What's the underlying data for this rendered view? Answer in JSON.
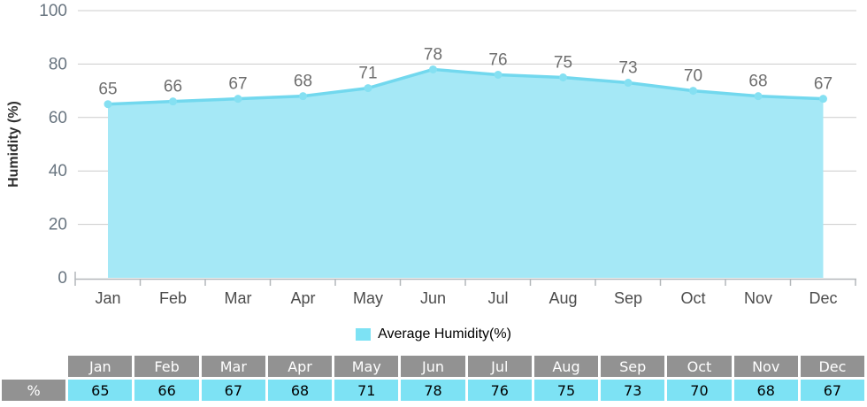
{
  "chart_data": {
    "type": "area",
    "categories": [
      "Jan",
      "Feb",
      "Mar",
      "Apr",
      "May",
      "Jun",
      "Jul",
      "Aug",
      "Sep",
      "Oct",
      "Nov",
      "Dec"
    ],
    "values": [
      65,
      66,
      67,
      68,
      71,
      78,
      76,
      75,
      73,
      70,
      68,
      67
    ],
    "legend": "Average Humidity(%)",
    "ylabel": "Humidity (%)",
    "xlabel": "",
    "y_ticks": [
      0,
      20,
      40,
      60,
      80,
      100
    ],
    "ylim": [
      0,
      100
    ],
    "grid": true,
    "legend_position": "bottom"
  },
  "table": {
    "row_label": "%"
  },
  "colors": {
    "area_fill": "#a5e8f6",
    "line": "#72d8ee",
    "marker": "#85e0f2",
    "grid": "#cccccc",
    "axis": "#b3b7ba",
    "data_label": "#6e6e6e",
    "tick_label": "#697580",
    "month_label": "#4c4c4c",
    "axis_title": "#2e2e2e",
    "table_header_bg": "#929292",
    "table_value_bg": "#7de2f4",
    "legend_swatch": "#7de2f4"
  }
}
